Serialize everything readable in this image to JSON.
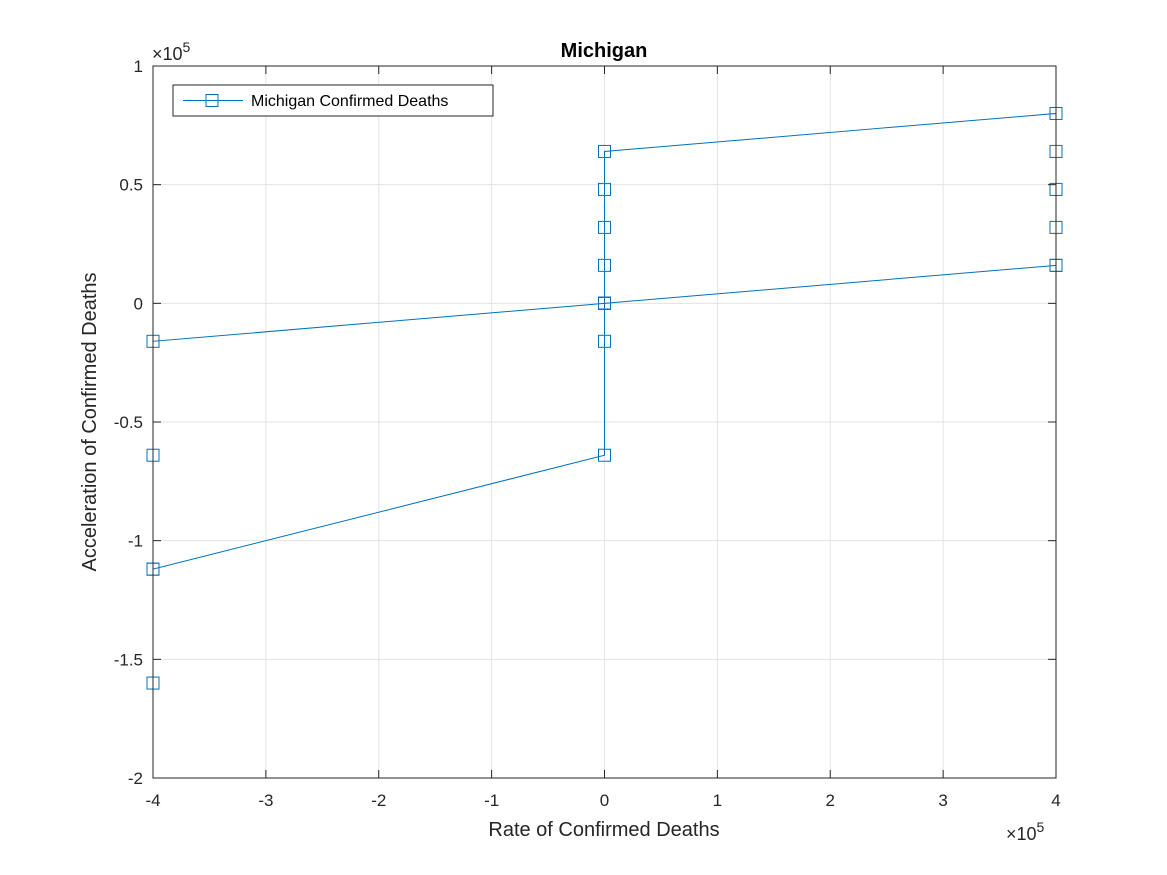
{
  "chart_data": {
    "type": "line",
    "title": "Michigan",
    "xlabel": "Rate of Confirmed Deaths",
    "ylabel": "Acceleration of Confirmed Deaths",
    "x_exponent_label": "×10",
    "x_exponent": "5",
    "y_exponent_label": "×10",
    "y_exponent": "5",
    "xlim": [
      -400000,
      400000
    ],
    "ylim": [
      -200000,
      100000
    ],
    "xticks": [
      -400000,
      -300000,
      -200000,
      -100000,
      0,
      100000,
      200000,
      300000,
      400000
    ],
    "xtick_labels": [
      "-4",
      "-3",
      "-2",
      "-1",
      "0",
      "1",
      "2",
      "3",
      "4"
    ],
    "yticks": [
      -200000,
      -150000,
      -100000,
      -50000,
      0,
      50000,
      100000
    ],
    "ytick_labels": [
      "-2",
      "-1.5",
      "-1",
      "-0.5",
      "0",
      "0.5",
      "1"
    ],
    "grid": true,
    "legend_position": "top-left",
    "color": "#0072BD",
    "marker": "square",
    "series": [
      {
        "name": "Michigan Confirmed Deaths",
        "x": [
          0,
          0,
          0,
          0,
          0,
          0,
          0,
          0,
          0,
          0,
          0,
          0,
          400000,
          400000,
          400000,
          400000,
          400000,
          400000,
          0,
          0,
          0,
          0,
          0,
          0,
          0,
          0,
          -400000,
          -400000,
          -400000,
          -400000,
          -400000,
          0,
          0,
          0
        ],
        "y": [
          0,
          0,
          0,
          0,
          0,
          0,
          0,
          0,
          16000,
          32000,
          48000,
          64000,
          80000,
          64000,
          48000,
          32000,
          16000,
          16000,
          0,
          0,
          0,
          0,
          0,
          0,
          -16000,
          -64000,
          -112000,
          -160000,
          -112000,
          -64000,
          -16000,
          0,
          0,
          0
        ]
      }
    ]
  }
}
